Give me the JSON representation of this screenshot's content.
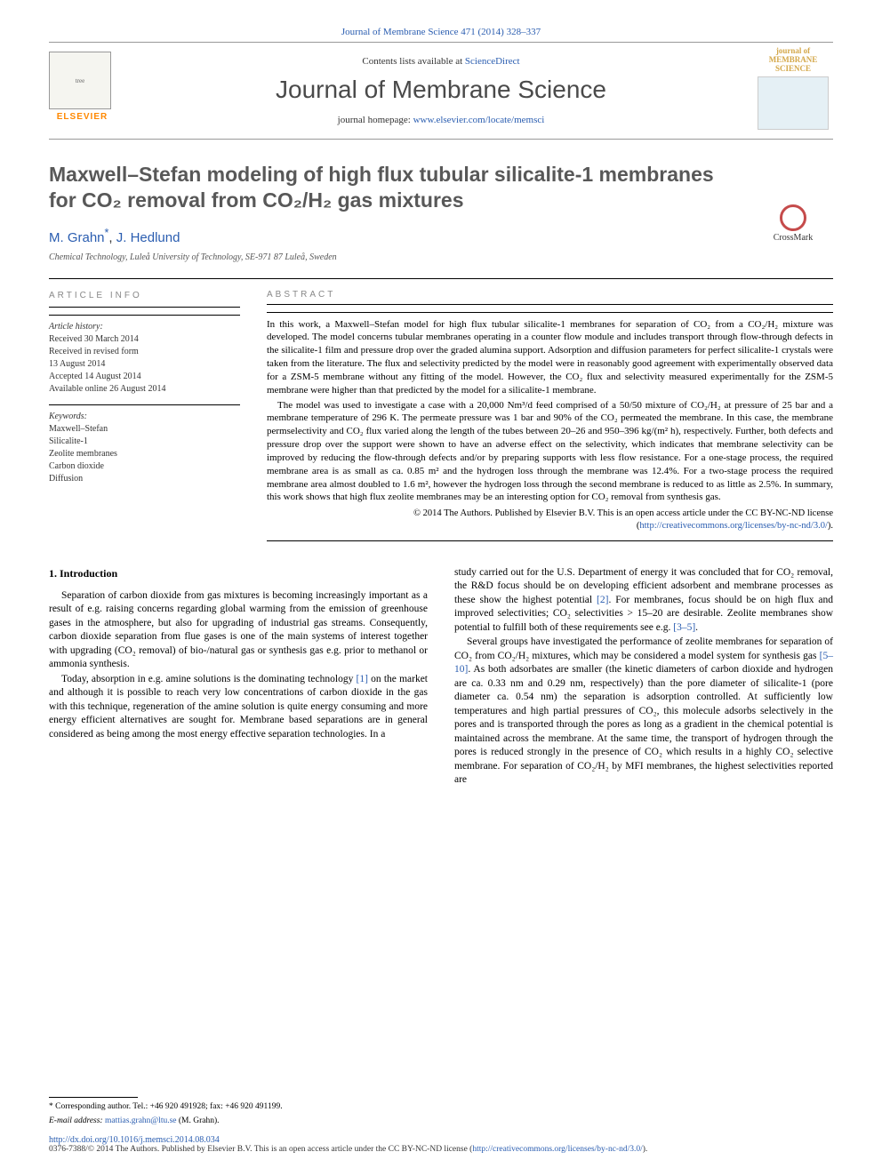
{
  "header": {
    "journal_link": "Journal of Membrane Science 471 (2014) 328–337",
    "contents_text": "Contents lists available at ",
    "contents_link": "ScienceDirect",
    "journal_name": "Journal of Membrane Science",
    "homepage_label": "journal homepage: ",
    "homepage_url": "www.elsevier.com/locate/memsci",
    "elsevier_label": "ELSEVIER",
    "journal_logo_line1": "journal of",
    "journal_logo_line2": "MEMBRANE",
    "journal_logo_line3": "SCIENCE"
  },
  "crossmark": {
    "label": "CrossMark"
  },
  "title": "Maxwell–Stefan modeling of high flux tubular silicalite-1 membranes for CO₂ removal from CO₂/H₂ gas mixtures",
  "authors": {
    "line": "M. Grahn",
    "corr_marker": "*",
    "sep": ", ",
    "second": "J. Hedlund"
  },
  "affiliation": "Chemical Technology, Luleå University of Technology, SE-971 87 Luleå, Sweden",
  "article_info": {
    "heading": "ARTICLE INFO",
    "history_label": "Article history:",
    "history": [
      "Received 30 March 2014",
      "Received in revised form",
      "13 August 2014",
      "Accepted 14 August 2014",
      "Available online 26 August 2014"
    ],
    "keywords_label": "Keywords:",
    "keywords": [
      "Maxwell–Stefan",
      "Silicalite-1",
      "Zeolite membranes",
      "Carbon dioxide",
      "Diffusion"
    ]
  },
  "abstract": {
    "heading": "ABSTRACT",
    "p1": "In this work, a Maxwell–Stefan model for high flux tubular silicalite-1 membranes for separation of CO₂ from a CO₂/H₂ mixture was developed. The model concerns tubular membranes operating in a counter flow module and includes transport through flow-through defects in the silicalite-1 film and pressure drop over the graded alumina support. Adsorption and diffusion parameters for perfect silicalite-1 crystals were taken from the literature. The flux and selectivity predicted by the model were in reasonably good agreement with experimentally observed data for a ZSM-5 membrane without any fitting of the model. However, the CO₂ flux and selectivity measured experimentally for the ZSM-5 membrane were higher than that predicted by the model for a silicalite-1 membrane.",
    "p2": "The model was used to investigate a case with a 20,000 Nm³/d feed comprised of a 50/50 mixture of CO₂/H₂ at pressure of 25 bar and a membrane temperature of 296 K. The permeate pressure was 1 bar and 90% of the CO₂ permeated the membrane. In this case, the membrane permselectivity and CO₂ flux varied along the length of the tubes between 20–26 and 950–396 kg/(m² h), respectively. Further, both defects and pressure drop over the support were shown to have an adverse effect on the selectivity, which indicates that membrane selectivity can be improved by reducing the flow-through defects and/or by preparing supports with less flow resistance. For a one-stage process, the required membrane area is as small as ca. 0.85 m² and the hydrogen loss through the membrane was 12.4%. For a two-stage process the required membrane area almost doubled to 1.6 m², however the hydrogen loss through the second membrane is reduced to as little as 2.5%. In summary, this work shows that high flux zeolite membranes may be an interesting option for CO₂ removal from synthesis gas.",
    "license": "© 2014 The Authors. Published by Elsevier B.V. This is an open access article under the CC BY-NC-ND license (",
    "license_url": "http://creativecommons.org/licenses/by-nc-nd/3.0/",
    "license_close": ")."
  },
  "intro": {
    "heading": "1. Introduction",
    "col1_p1": "Separation of carbon dioxide from gas mixtures is becoming increasingly important as a result of e.g. raising concerns regarding global warming from the emission of greenhouse gases in the atmosphere, but also for upgrading of industrial gas streams. Consequently, carbon dioxide separation from flue gases is one of the main systems of interest together with upgrading (CO₂ removal) of bio-/natural gas or synthesis gas e.g. prior to methanol or ammonia synthesis.",
    "col1_p2_a": "Today, absorption in e.g. amine solutions is the dominating technology ",
    "col1_p2_ref1": "[1]",
    "col1_p2_b": " on the market and although it is possible to reach very low concentrations of carbon dioxide in the gas with this technique, regeneration of the amine solution is quite energy consuming and more energy efficient alternatives are sought for. Membrane based separations are in general considered as being among the most energy effective separation technologies. In a",
    "col2_p1_a": "study carried out for the U.S. Department of energy it was concluded that for CO₂ removal, the R&D focus should be on developing efficient adsorbent and membrane processes as these show the highest potential ",
    "col2_p1_ref2": "[2]",
    "col2_p1_b": ". For membranes, focus should be on high flux and improved selectivities; CO₂ selectivities > 15–20 are desirable. Zeolite membranes show potential to fulfill both of these requirements see e.g. ",
    "col2_p1_ref3": "[3–5]",
    "col2_p1_c": ".",
    "col2_p2_a": "Several groups have investigated the performance of zeolite membranes for separation of CO₂ from CO₂/H₂ mixtures, which may be considered a model system for synthesis gas ",
    "col2_p2_ref5": "[5–10]",
    "col2_p2_b": ". As both adsorbates are smaller (the kinetic diameters of carbon dioxide and hydrogen are ca. 0.33 nm and 0.29 nm, respectively) than the pore diameter of silicalite-1 (pore diameter ca. 0.54 nm) the separation is adsorption controlled. At sufficiently low temperatures and high partial pressures of CO₂, this molecule adsorbs selectively in the pores and is transported through the pores as long as a gradient in the chemical potential is maintained across the membrane. At the same time, the transport of hydrogen through the pores is reduced strongly in the presence of CO₂ which results in a highly CO₂ selective membrane. For separation of CO₂/H₂ by MFI membranes, the highest selectivities reported are"
  },
  "footer": {
    "corr_label": "* Corresponding author. Tel.: +46 920 491928; fax: +46 920 491199.",
    "email_label": "E-mail address: ",
    "email": "mattias.grahn@ltu.se",
    "email_paren": " (M. Grahn).",
    "doi": "http://dx.doi.org/10.1016/j.memsci.2014.08.034",
    "copyright_a": "0376-7388/© 2014 The Authors. Published by Elsevier B.V. This is an open access article under the CC BY-NC-ND license (",
    "copyright_url": "http://creativecommons.org/licenses/by-nc-nd/3.0/",
    "copyright_b": ")."
  }
}
